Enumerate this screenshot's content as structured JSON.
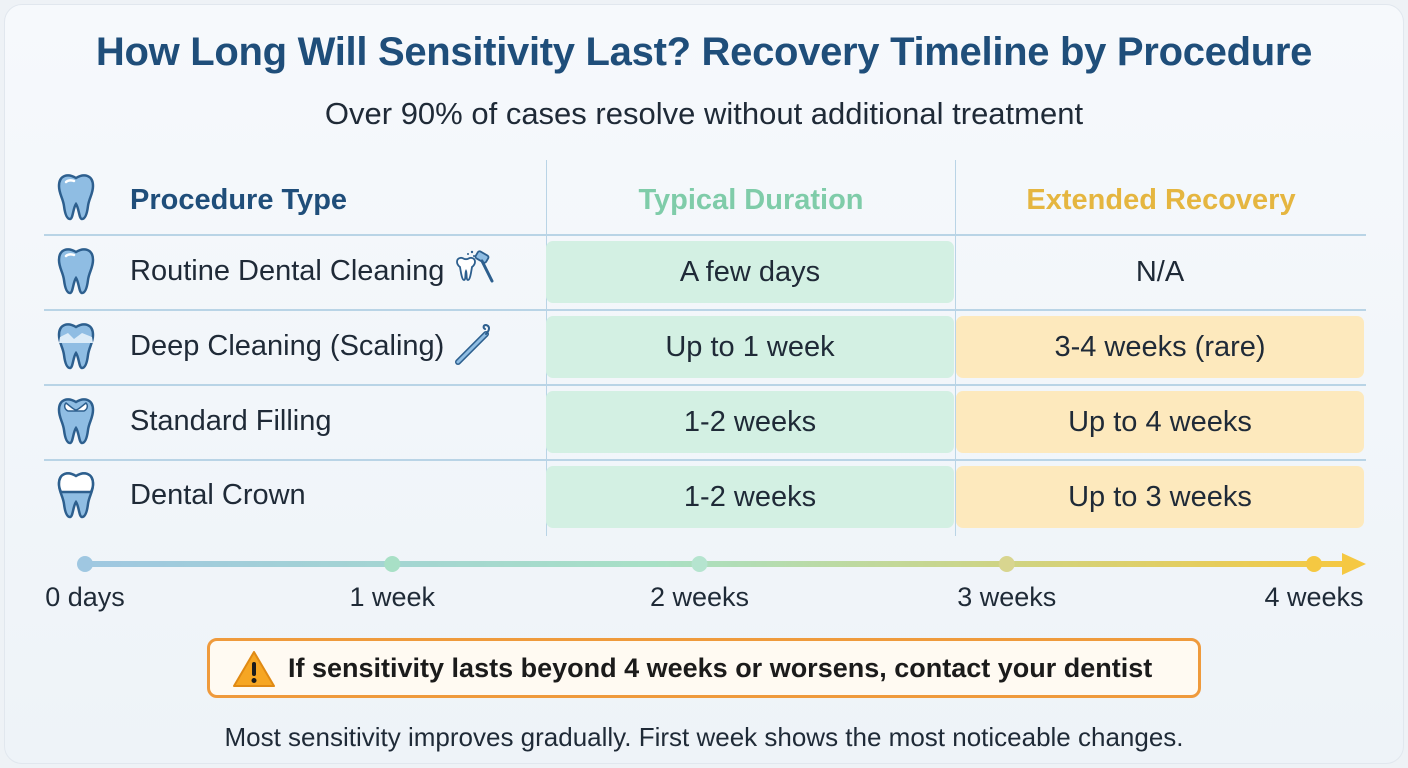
{
  "title": "How Long Will Sensitivity Last? Recovery Timeline by Procedure",
  "subtitle": "Over 90% of cases resolve without additional treatment",
  "chart_data": {
    "type": "table",
    "columns": [
      "Procedure Type",
      "Typical Duration",
      "Extended Recovery"
    ],
    "rows": [
      {
        "procedure": "Routine Dental Cleaning",
        "typical": "A few days",
        "extended": "N/A",
        "icon": "cleaning-tools-icon",
        "tooth_icon": "tooth-icon"
      },
      {
        "procedure": "Deep Cleaning (Scaling)",
        "typical": "Up to 1 week",
        "extended": "3-4 weeks (rare)",
        "icon": "dental-scaler-icon",
        "tooth_icon": "tooth-scaling-icon"
      },
      {
        "procedure": "Standard Filling",
        "typical": "1-2 weeks",
        "extended": "Up to 4 weeks",
        "icon": "",
        "tooth_icon": "tooth-filling-icon"
      },
      {
        "procedure": "Dental Crown",
        "typical": "1-2 weeks",
        "extended": "Up to 3 weeks",
        "icon": "",
        "tooth_icon": "tooth-crown-icon"
      }
    ],
    "timeline": {
      "ticks": [
        {
          "label": "0 days",
          "value": 0
        },
        {
          "label": "1 week",
          "value": 1
        },
        {
          "label": "2 weeks",
          "value": 2
        },
        {
          "label": "3 weeks",
          "value": 3
        },
        {
          "label": "4 weeks",
          "value": 4
        }
      ],
      "range": [
        0,
        4
      ],
      "unit": "weeks"
    }
  },
  "warning": {
    "text": "If sensitivity lasts beyond 4 weeks or worsens, contact your dentist",
    "icon": "warning-triangle-icon"
  },
  "footer": "Most sensitivity improves gradually. First week shows the most noticeable changes.",
  "colors": {
    "title": "#1f4e7a",
    "typical_header": "#7fcca9",
    "extended_header": "#e5b640",
    "typical_fill": "#d3f0e3",
    "extended_fill": "#fde9bd",
    "tooth": "#7fb3dc",
    "warning_border": "#ef9a3c"
  }
}
